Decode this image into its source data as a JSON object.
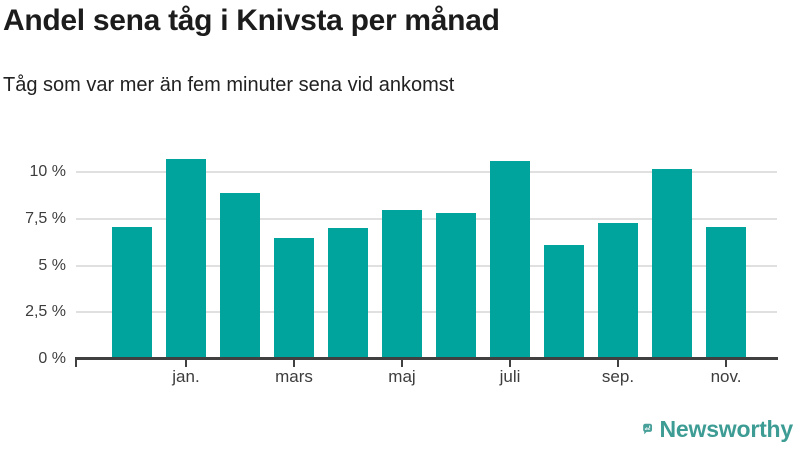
{
  "header": {
    "title": "Andel sena tåg i Knivsta per månad",
    "subtitle": "Tåg som var mer än fem minuter sena vid ankomst"
  },
  "chart_data": {
    "type": "bar",
    "title": "Andel sena tåg i Knivsta per månad",
    "subtitle": "Tåg som var mer än fem minuter sena vid ankomst",
    "categories": [
      "",
      "jan.",
      "",
      "mars",
      "",
      "maj",
      "",
      "juli",
      "",
      "sep.",
      "",
      "nov."
    ],
    "values": [
      7.1,
      10.7,
      8.9,
      6.5,
      7.0,
      8.0,
      7.8,
      10.6,
      6.1,
      7.3,
      10.2,
      7.1
    ],
    "unit": "%",
    "y_ticks": [
      0,
      2.5,
      5,
      7.5,
      10
    ],
    "y_tick_labels": [
      "0 %",
      "2,5 %",
      "5 %",
      "7,5 %",
      "10 %"
    ],
    "ylim": [
      0,
      11
    ],
    "grid": true,
    "legend": "none",
    "xlabel": "",
    "ylabel": ""
  },
  "footer": {
    "brand": "Newsworthy",
    "logo_icon": "speech-bubble-bar-chart-icon"
  },
  "colors": {
    "bar": "#00a49c",
    "axis": "#404040",
    "gridline": "#e0e0e0",
    "title_text": "#1c1c1c",
    "tick_label": "#3d3d3d",
    "brand_teal": "#3d9c94",
    "logo_bubble": "#47a09a"
  }
}
